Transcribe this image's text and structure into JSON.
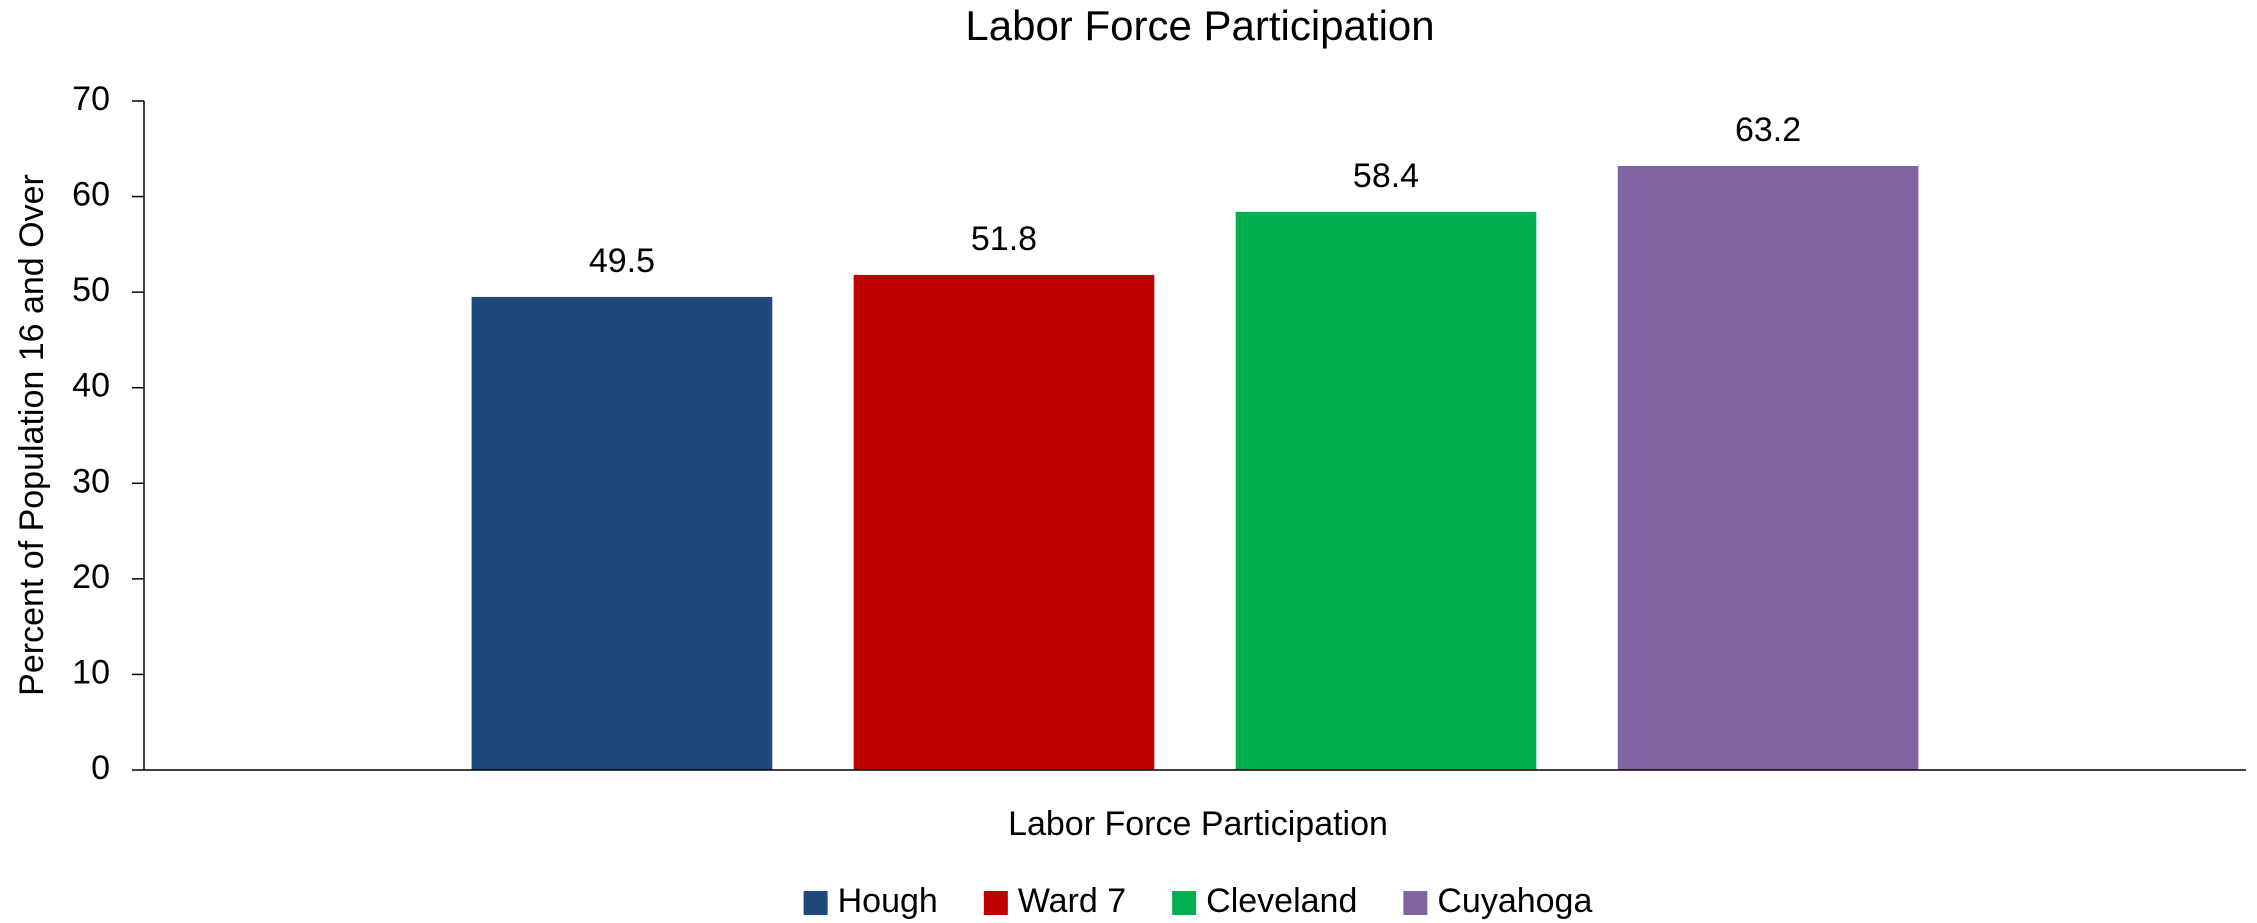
{
  "chart_data": {
    "type": "bar",
    "title": "Labor Force Participation",
    "x_label": "Labor Force Participation",
    "y_label": "Percent of Population 16 and Over",
    "categories": [
      "Labor Force Participation"
    ],
    "series": [
      {
        "name": "Hough",
        "color": "#1f497d",
        "values": [
          49.5
        ]
      },
      {
        "name": "Ward 7",
        "color": "#c00000",
        "values": [
          51.8
        ]
      },
      {
        "name": "Cleveland",
        "color": "#00b050",
        "values": [
          58.4
        ]
      },
      {
        "name": "Cuyahoga",
        "color": "#8064a2",
        "values": [
          63.2
        ]
      }
    ],
    "ylim": [
      0,
      70
    ],
    "yticks": [
      0,
      10,
      20,
      30,
      40,
      50,
      60,
      70
    ],
    "legend": "bottom"
  }
}
